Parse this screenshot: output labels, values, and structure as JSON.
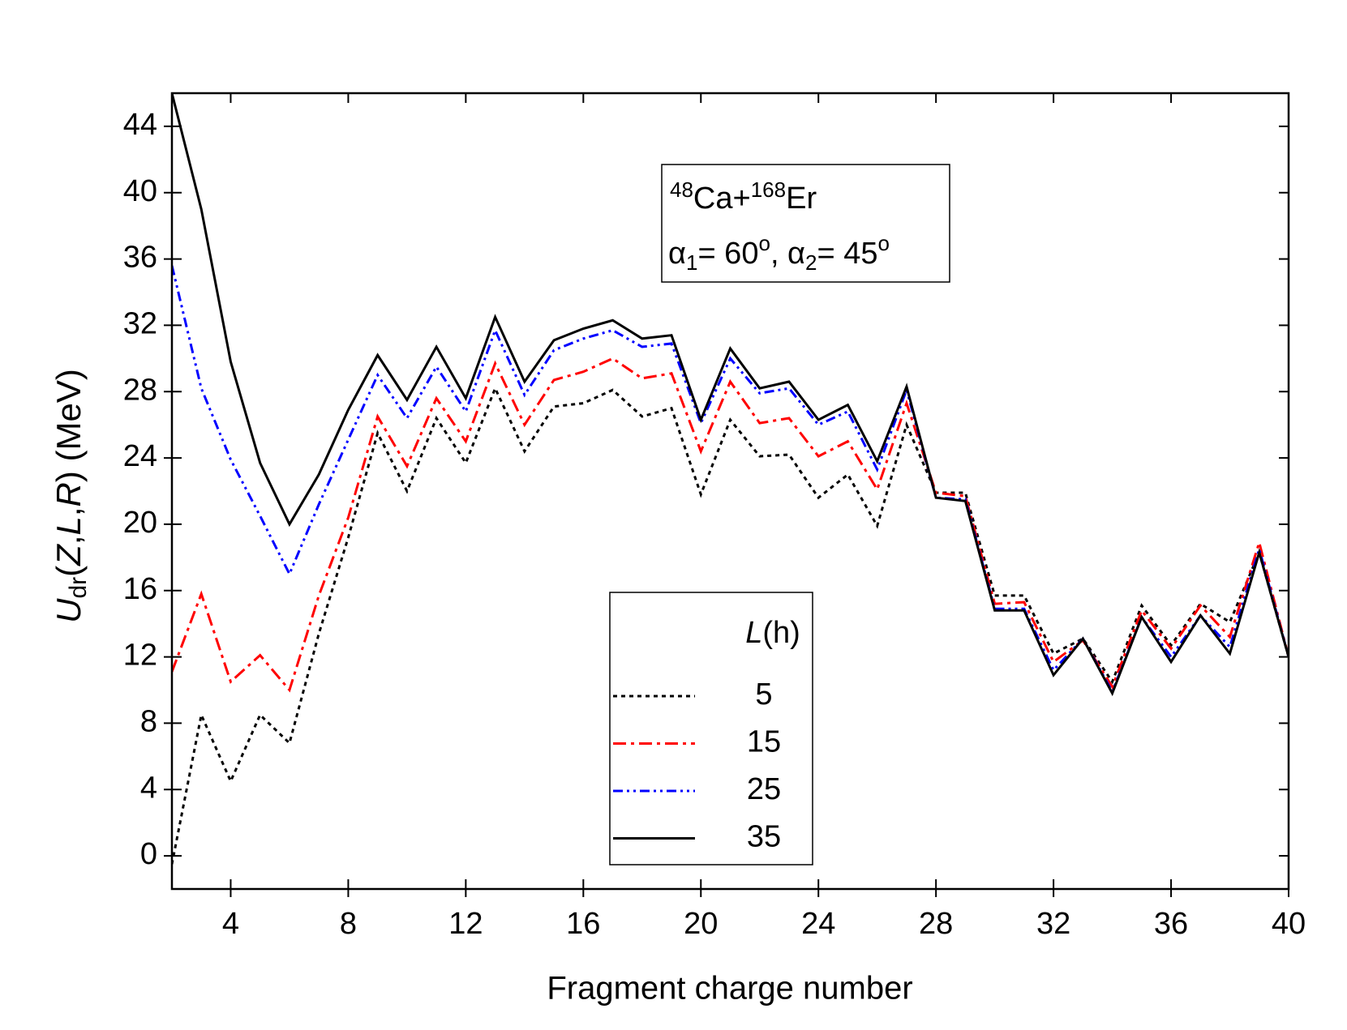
{
  "chart_data": {
    "type": "line",
    "xlabel": "Fragment charge number",
    "ylabel": [
      "U",
      "dr",
      "(",
      "Z",
      ",",
      "L",
      ",",
      "R",
      ") (MeV)"
    ],
    "annotation": [
      [
        "48",
        "Ca+",
        "168",
        "Er"
      ],
      [
        "α",
        "1",
        "= 60",
        "o",
        ", α",
        "2",
        "= 45",
        "o"
      ]
    ],
    "legend_title": [
      "L",
      "(h)"
    ],
    "legend": "lower center",
    "x": [
      2,
      3,
      4,
      5,
      6,
      7,
      8,
      9,
      10,
      11,
      12,
      13,
      14,
      15,
      16,
      17,
      18,
      19,
      20,
      21,
      22,
      23,
      24,
      25,
      26,
      27,
      28,
      29,
      30,
      31,
      32,
      33,
      34,
      35,
      36,
      37,
      38,
      39,
      40
    ],
    "xlim": [
      2,
      40
    ],
    "xticks": [
      4,
      8,
      12,
      16,
      20,
      24,
      28,
      32,
      36,
      40
    ],
    "ylim": [
      -2,
      46
    ],
    "yticks": [
      0,
      4,
      8,
      12,
      16,
      20,
      24,
      28,
      32,
      36,
      40,
      44
    ],
    "series": [
      {
        "name": "5",
        "color": "#000000",
        "dash": "dotted",
        "values": [
          -0.5,
          8.5,
          4.5,
          8.5,
          6.8,
          13.4,
          19.2,
          25.5,
          22.0,
          26.4,
          23.7,
          28.2,
          24.4,
          27.1,
          27.3,
          28.1,
          26.5,
          27.0,
          21.8,
          26.3,
          24.1,
          24.2,
          21.6,
          23.0,
          19.9,
          26.0,
          21.9,
          21.9,
          15.7,
          15.7,
          12.2,
          13.1,
          10.5,
          15.1,
          12.7,
          15.2,
          14.1,
          18.3,
          12.0
        ]
      },
      {
        "name": "15",
        "color": "#ff0000",
        "dash": "dash-dot",
        "values": [
          11.1,
          15.8,
          10.5,
          12.1,
          10.0,
          15.7,
          20.4,
          26.5,
          23.5,
          27.6,
          25.0,
          29.7,
          26.0,
          28.7,
          29.2,
          30.0,
          28.8,
          29.1,
          24.4,
          28.6,
          26.1,
          26.4,
          24.1,
          25.0,
          22.1,
          27.3,
          21.9,
          21.7,
          15.2,
          15.3,
          11.7,
          13.0,
          10.2,
          14.8,
          12.5,
          15.1,
          13.2,
          18.9,
          12.0
        ]
      },
      {
        "name": "25",
        "color": "#0000ff",
        "dash": "dash-dot-dot",
        "values": [
          35.6,
          28.2,
          23.9,
          20.5,
          17.0,
          21.2,
          25.1,
          29.0,
          26.4,
          29.5,
          26.8,
          31.7,
          27.8,
          30.5,
          31.2,
          31.7,
          30.7,
          30.9,
          26.1,
          30.0,
          27.9,
          28.2,
          26.0,
          26.8,
          23.3,
          28.1,
          21.6,
          21.5,
          14.9,
          14.9,
          11.2,
          13.1,
          9.9,
          14.4,
          12.0,
          14.5,
          12.6,
          18.5,
          12.0
        ]
      },
      {
        "name": "35",
        "color": "#000000",
        "dash": "solid",
        "values": [
          46.0,
          39.0,
          29.8,
          23.7,
          20.0,
          23.0,
          26.9,
          30.2,
          27.5,
          30.7,
          27.6,
          32.5,
          28.6,
          31.1,
          31.8,
          32.3,
          31.2,
          31.4,
          26.3,
          30.6,
          28.2,
          28.6,
          26.3,
          27.2,
          23.8,
          28.3,
          21.6,
          21.4,
          14.8,
          14.8,
          10.9,
          13.1,
          9.8,
          14.4,
          11.7,
          14.5,
          12.2,
          18.3,
          12.0
        ]
      }
    ]
  }
}
